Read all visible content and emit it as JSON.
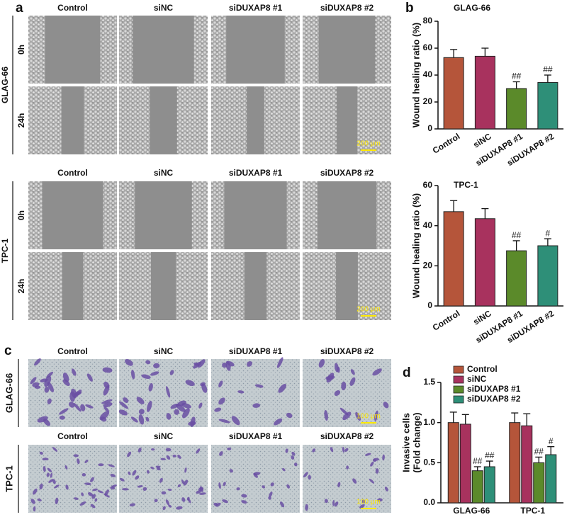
{
  "panel_a": {
    "label": "a",
    "blocks": [
      {
        "cell_line": "GLAG-66",
        "columns": [
          "Control",
          "siNC",
          "siDUXAP8 #1",
          "siDUXAP8 #2"
        ],
        "times": [
          "0h",
          "24h"
        ],
        "scale_bar": "200 μm"
      },
      {
        "cell_line": "TPC-1",
        "columns": [
          "Control",
          "siNC",
          "siDUXAP8 #1",
          "siDUXAP8 #2"
        ],
        "times": [
          "0h",
          "24h"
        ],
        "scale_bar": "200 μm"
      }
    ]
  },
  "panel_c": {
    "label": "c",
    "blocks": [
      {
        "cell_line": "GLAG-66",
        "columns": [
          "Control",
          "siNC",
          "siDUXAP8 #1",
          "siDUXAP8 #2"
        ],
        "scale_bar": "100 μm"
      },
      {
        "cell_line": "TPC-1",
        "columns": [
          "Control",
          "siNC",
          "siDUXAP8 #1",
          "siDUXAP8 #2"
        ],
        "scale_bar": "100 μm"
      }
    ]
  },
  "panel_b_label": "b",
  "panel_d_label": "d",
  "chart_data": [
    {
      "type": "bar",
      "title": "GLAG-66",
      "y_label": "Wound healing ratio (%)",
      "categories": [
        "Control",
        "siNC",
        "siDUXAP8 #1",
        "siDUXAP8 #2"
      ],
      "values": [
        53,
        54,
        30,
        34.5
      ],
      "errors": [
        6,
        6,
        5,
        5.5
      ],
      "annotations": [
        null,
        null,
        "##",
        "##"
      ],
      "colors": [
        "#b5553a",
        "#a8325e",
        "#5b8a2a",
        "#2e8f78"
      ],
      "ylim": [
        0,
        80
      ],
      "yticks": [
        0,
        20,
        40,
        60,
        80
      ]
    },
    {
      "type": "bar",
      "title": "TPC-1",
      "y_label": "Wound healing ratio (%)",
      "categories": [
        "Control",
        "siNC",
        "siDUXAP8 #1",
        "siDUXAP8 #2"
      ],
      "values": [
        47,
        43.5,
        27.5,
        30
      ],
      "errors": [
        5.5,
        5,
        5,
        3.5
      ],
      "annotations": [
        null,
        null,
        "##",
        "#"
      ],
      "colors": [
        "#b5553a",
        "#a8325e",
        "#5b8a2a",
        "#2e8f78"
      ],
      "ylim": [
        0,
        60
      ],
      "yticks": [
        0,
        20,
        40,
        60
      ]
    },
    {
      "type": "grouped_bar",
      "y_label": [
        "Invasive cells",
        "(Fold change)"
      ],
      "categories": [
        "GLAG-66",
        "TPC-1"
      ],
      "series": [
        {
          "name": "Control",
          "color": "#b5553a",
          "values": [
            1.0,
            1.0
          ],
          "errors": [
            0.13,
            0.12
          ]
        },
        {
          "name": "siNC",
          "color": "#a8325e",
          "values": [
            0.98,
            0.96
          ],
          "errors": [
            0.12,
            0.15
          ]
        },
        {
          "name": "siDUXAP8 #1",
          "color": "#5b8a2a",
          "values": [
            0.4,
            0.5
          ],
          "errors": [
            0.05,
            0.07
          ],
          "annotations": [
            "##",
            "##"
          ]
        },
        {
          "name": "siDUXAP8 #2",
          "color": "#2e8f78",
          "values": [
            0.45,
            0.6
          ],
          "errors": [
            0.07,
            0.1
          ],
          "annotations": [
            "##",
            "#"
          ]
        }
      ],
      "ylim": [
        0,
        1.5
      ],
      "yticks": [
        {
          "value": 0,
          "label": "0.0"
        },
        {
          "value": 0.5,
          "label": "0.5"
        },
        {
          "value": 1.0,
          "label": "1.0"
        },
        {
          "value": 1.5,
          "label": "1.5"
        }
      ],
      "legend": "top-left"
    }
  ]
}
